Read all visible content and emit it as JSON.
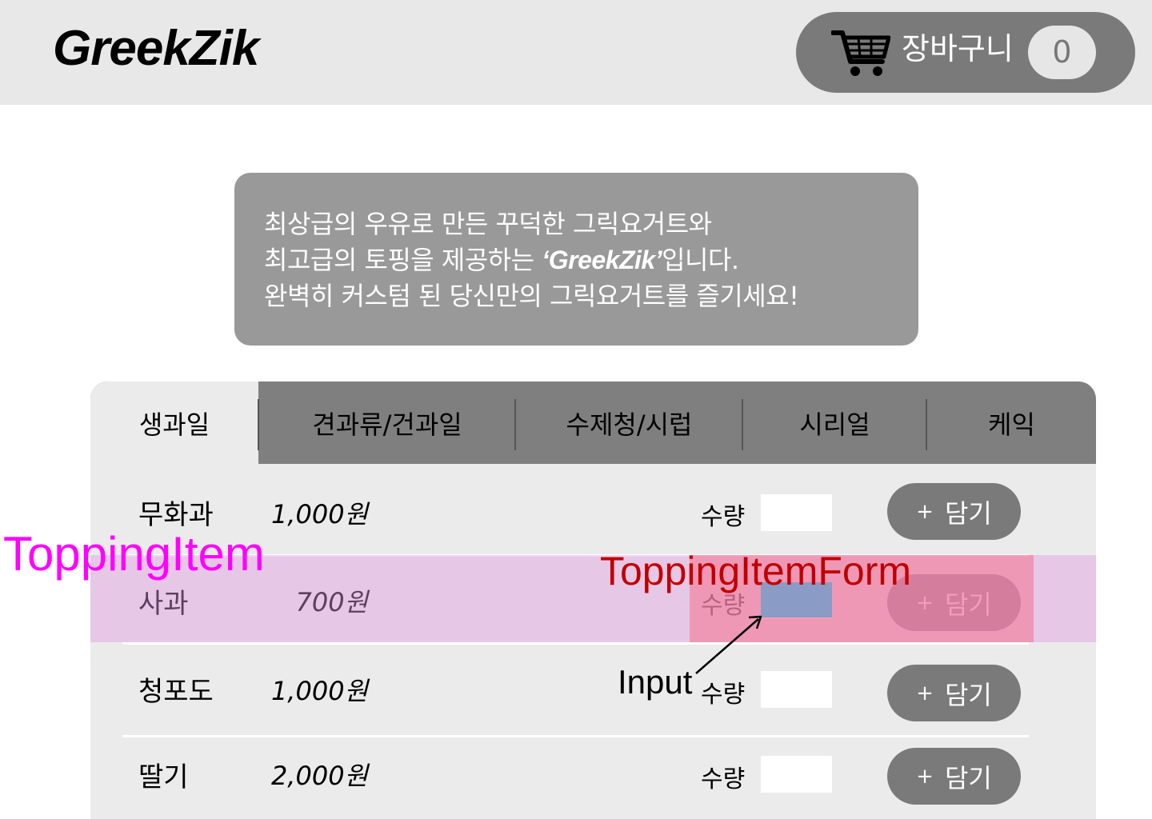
{
  "header": {
    "logo": "GreekZik",
    "cart": {
      "label": "장바구니",
      "count": "0",
      "icon": "shopping-cart-icon"
    }
  },
  "intro": {
    "line1": "최상급의 우유로 만든 꾸덕한 그릭요거트와",
    "line2_prefix": "최고급의 토핑을 제공하는 ",
    "line2_brand": "‘GreekZik’",
    "line2_suffix": "입니다.",
    "line3": "완벽히 커스텀 된 당신만의 그릭요거트를 즐기세요!"
  },
  "tabs": [
    {
      "label": "생과일",
      "active": true
    },
    {
      "label": "견과류/건과일",
      "active": false
    },
    {
      "label": "수제청/시럽",
      "active": false
    },
    {
      "label": "시리얼",
      "active": false
    },
    {
      "label": "케익",
      "active": false
    }
  ],
  "items": [
    {
      "name": "무화과",
      "price": "1,000원",
      "qty_label": "수량",
      "qty_value": "",
      "add_plus": "+",
      "add_label": "담기"
    },
    {
      "name": "사과",
      "price": "700원",
      "qty_label": "수량",
      "qty_value": "",
      "add_plus": "+",
      "add_label": "담기"
    },
    {
      "name": "청포도",
      "price": "1,000원",
      "qty_label": "수량",
      "qty_value": "",
      "add_plus": "+",
      "add_label": "담기"
    },
    {
      "name": "딸기",
      "price": "2,000원",
      "qty_label": "수량",
      "qty_value": "",
      "add_plus": "+",
      "add_label": "담기"
    }
  ],
  "annotations": {
    "topping_item": "ToppingItem",
    "topping_item_form": "ToppingItemForm",
    "input": "Input"
  },
  "colors": {
    "header_bg": "#e8e8e8",
    "button_gray": "#7a7a7a",
    "annotation_item": "#ff00ff",
    "annotation_form": "#c00000"
  }
}
